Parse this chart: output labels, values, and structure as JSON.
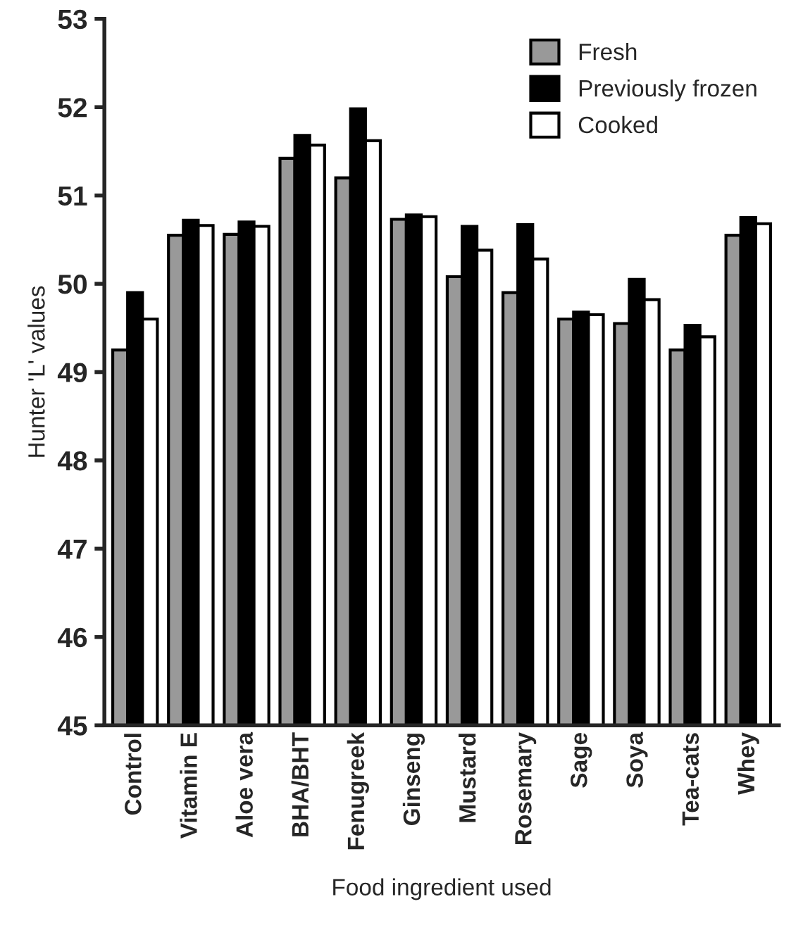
{
  "chart_data": {
    "type": "bar",
    "xlabel": "Food ingredient used",
    "ylabel": "Hunter 'L' values",
    "categories": [
      "Control",
      "Vitamin E",
      "Aloe vera",
      "BHA/BHT",
      "Fenugreek",
      "Ginseng",
      "Mustard",
      "Rosemary",
      "Sage",
      "Soya",
      "Tea-cats",
      "Whey"
    ],
    "series": [
      {
        "name": "Fresh",
        "color": "#999999",
        "values": [
          49.25,
          50.55,
          50.56,
          51.42,
          51.2,
          50.73,
          50.08,
          49.9,
          49.6,
          49.55,
          49.25,
          50.55
        ]
      },
      {
        "name": "Previously frozen",
        "color": "#000000",
        "values": [
          49.9,
          50.72,
          50.7,
          51.68,
          51.98,
          50.78,
          50.65,
          50.67,
          49.68,
          50.05,
          49.53,
          50.75
        ]
      },
      {
        "name": "Cooked",
        "color": "#ffffff",
        "values": [
          49.6,
          50.66,
          50.65,
          51.57,
          51.62,
          50.76,
          50.38,
          50.28,
          49.65,
          49.82,
          49.4,
          50.68
        ]
      }
    ],
    "ylim": [
      45,
      53
    ],
    "yticks": [
      45,
      46,
      47,
      48,
      49,
      50,
      51,
      52,
      53
    ],
    "grid": false,
    "legend": "top right"
  }
}
